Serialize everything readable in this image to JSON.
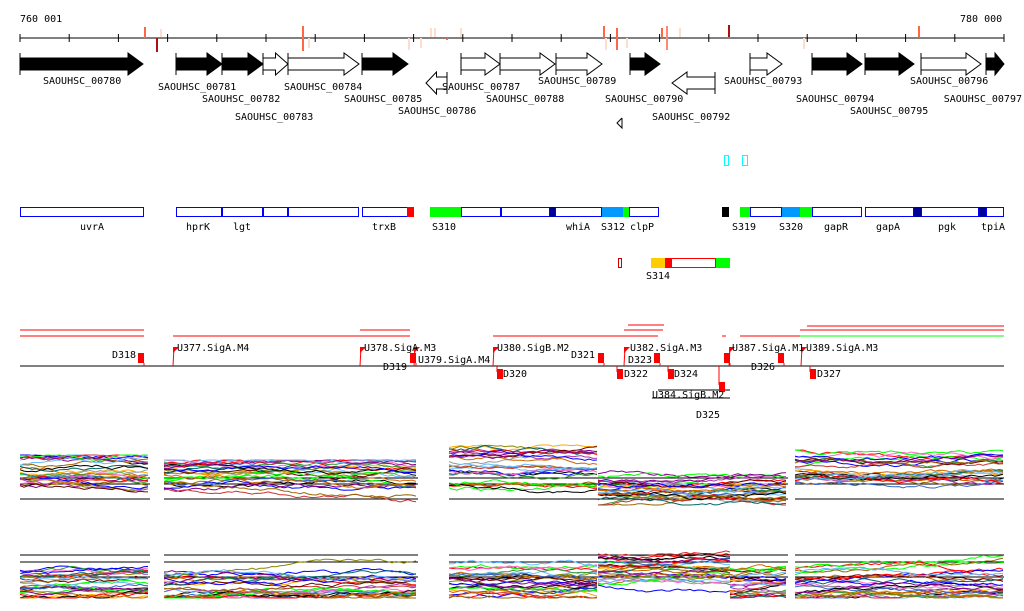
{
  "ruler": {
    "start_label": "760 001",
    "end_label": "780 000"
  },
  "genes": [
    {
      "name": "SAOUHSC_00780",
      "strand": "+",
      "filled": true
    },
    {
      "name": "SAOUHSC_00781",
      "strand": "+",
      "filled": true
    },
    {
      "name": "SAOUHSC_00782",
      "strand": "+",
      "filled": true
    },
    {
      "name": "SAOUHSC_00783",
      "strand": "+",
      "filled": false
    },
    {
      "name": "SAOUHSC_00784",
      "strand": "+",
      "filled": false
    },
    {
      "name": "SAOUHSC_00785",
      "strand": "+",
      "filled": true
    },
    {
      "name": "SAOUHSC_00786",
      "strand": "-",
      "filled": false
    },
    {
      "name": "SAOUHSC_00787",
      "strand": "+",
      "filled": false
    },
    {
      "name": "SAOUHSC_00788",
      "strand": "+",
      "filled": false
    },
    {
      "name": "SAOUHSC_00789",
      "strand": "+",
      "filled": false
    },
    {
      "name": "SAOUHSC_00790",
      "strand": "+",
      "filled": true
    },
    {
      "name": "SAOUHSC_00792",
      "strand": "-",
      "filled": false
    },
    {
      "name": "SAOUHSC_00793",
      "strand": "+",
      "filled": false
    },
    {
      "name": "SAOUHSC_00794",
      "strand": "+",
      "filled": true
    },
    {
      "name": "SAOUHSC_00795",
      "strand": "+",
      "filled": true
    },
    {
      "name": "SAOUHSC_00796",
      "strand": "+",
      "filled": false
    },
    {
      "name": "SAOUHSC_00797",
      "strand": "+",
      "filled": true
    }
  ],
  "features": [
    "uvrA",
    "hprK",
    "lgt",
    "trxB",
    "S310",
    "whiA",
    "S312",
    "clpP",
    "S319",
    "S320",
    "gapR",
    "gapA",
    "pgk",
    "tpiA",
    "S314"
  ],
  "transcripts": [
    "D318",
    "U377.SigA.M4",
    "U378.SigA.M3",
    "D319",
    "U379.SigA.M4",
    "U380.SigB.M2",
    "D320",
    "D321",
    "D322",
    "U382.SigA.M3",
    "D323",
    "D324",
    "U384.SigB.M2",
    "D325",
    "U387.SigA.M1",
    "D326",
    "U389.SigA.M3",
    "D327"
  ],
  "colors": {
    "feature_border": "#0000ff",
    "accent_red": "#ff0000",
    "green": "#00ff00",
    "light_blue": "#0099ff",
    "dark_blue": "#000099",
    "orange": "#ffcc00",
    "cyan": "#00ffff"
  }
}
